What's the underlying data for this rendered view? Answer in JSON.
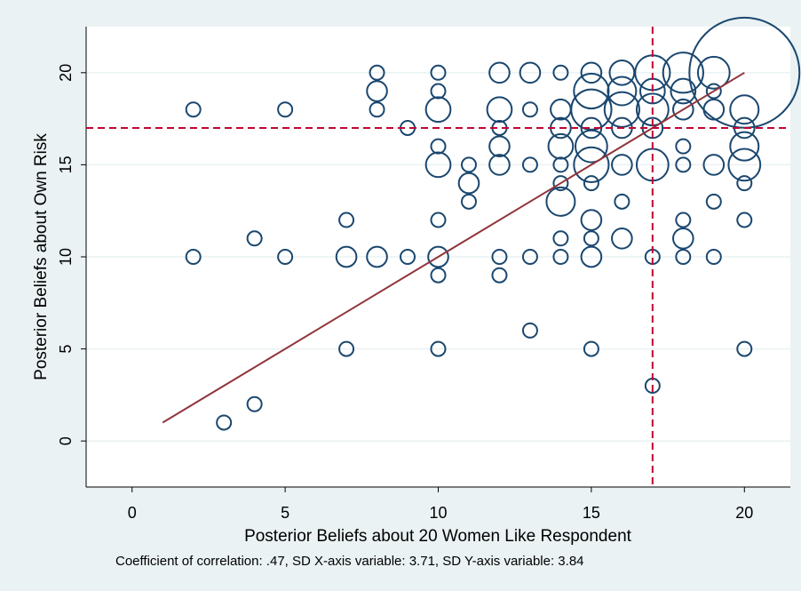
{
  "chart_data": {
    "type": "scatter",
    "x_label": "Posterior Beliefs about 20 Women Like Respondent",
    "y_label": "Posterior Beliefs about Own Risk",
    "note": "Coefficient of correlation: .47, SD X-axis variable: 3.71, SD Y-axis variable: 3.84",
    "xlim": [
      -1.5,
      21.5
    ],
    "ylim": [
      -2.5,
      22.5
    ],
    "xticks": [
      0,
      5,
      10,
      15,
      20
    ],
    "yticks": [
      0,
      5,
      10,
      15,
      20
    ],
    "grid": true,
    "color": "#1a476f",
    "x": [
      2,
      2,
      3,
      4,
      4,
      5,
      5,
      7,
      7,
      7,
      8,
      8,
      8,
      8,
      9,
      9,
      10,
      10,
      10,
      10,
      10,
      10,
      10,
      10,
      10,
      11,
      11,
      11,
      12,
      12,
      12,
      12,
      12,
      12,
      12,
      13,
      13,
      13,
      13,
      13,
      14,
      14,
      14,
      14,
      14,
      14,
      14,
      14,
      14,
      15,
      15,
      15,
      15,
      15,
      15,
      15,
      15,
      15,
      15,
      15,
      16,
      16,
      16,
      16,
      16,
      16,
      16,
      17,
      17,
      17,
      17,
      17,
      17,
      17,
      18,
      18,
      18,
      18,
      18,
      18,
      18,
      18,
      19,
      19,
      19,
      19,
      19,
      19,
      20,
      20,
      20,
      20,
      20,
      20,
      20,
      20
    ],
    "y": [
      18,
      10,
      1,
      11,
      2,
      18,
      10,
      12,
      10,
      5,
      20,
      19,
      18,
      10,
      17,
      10,
      20,
      19,
      18,
      16,
      15,
      12,
      10,
      9,
      5,
      15,
      14,
      13,
      20,
      18,
      17,
      16,
      15,
      10,
      9,
      20,
      18,
      15,
      10,
      6,
      20,
      18,
      17,
      16,
      15,
      14,
      13,
      11,
      10,
      20,
      19,
      18,
      17,
      16,
      15,
      14,
      12,
      11,
      10,
      5,
      20,
      19,
      18,
      17,
      15,
      13,
      11,
      20,
      19,
      18,
      17,
      15,
      10,
      3,
      20,
      19,
      18,
      16,
      15,
      12,
      11,
      10,
      20,
      19,
      18,
      15,
      13,
      10,
      20,
      18,
      17,
      16,
      15,
      14,
      12,
      5
    ],
    "sizes": [
      1,
      1,
      1,
      1,
      1,
      1,
      1,
      1,
      2,
      1,
      1,
      2,
      1,
      2,
      1,
      1,
      1,
      1,
      3,
      1,
      3,
      1,
      2,
      1,
      1,
      1,
      2,
      1,
      2,
      3,
      1,
      2,
      2,
      1,
      1,
      2,
      1,
      1,
      1,
      1,
      1,
      2,
      2,
      3,
      1,
      1,
      4,
      1,
      1,
      2,
      6,
      8,
      2,
      5,
      6,
      1,
      2,
      1,
      2,
      1,
      3,
      4,
      6,
      2,
      2,
      1,
      2,
      6,
      3,
      5,
      2,
      5,
      1,
      1,
      8,
      3,
      2,
      1,
      1,
      1,
      2,
      1,
      5,
      1,
      2,
      2,
      1,
      1,
      60,
      4,
      2,
      4,
      5,
      1,
      1,
      1
    ],
    "fit_line": {
      "x": [
        1,
        20
      ],
      "y": [
        1,
        20
      ],
      "color": "#90353b"
    },
    "ref_lines": {
      "x": 17,
      "y": 17,
      "color": "#c10534"
    }
  }
}
